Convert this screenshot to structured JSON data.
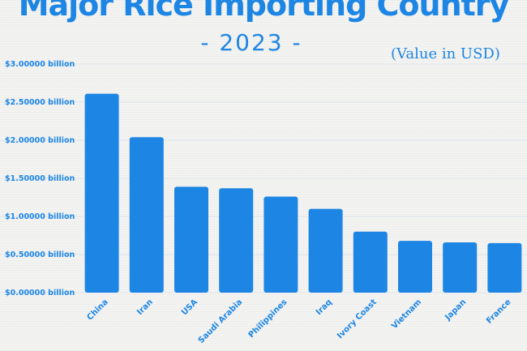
{
  "chart_data": {
    "type": "bar",
    "title": "Major Rice Importing Country",
    "subtitle": "- 2023 -",
    "unit_note": "(Value in USD)",
    "categories": [
      "China",
      "Iran",
      "USA",
      "Saudi Arabia",
      "Philippines",
      "Iraq",
      "Ivory Coast",
      "Vietnam",
      "Japan",
      "France"
    ],
    "values": [
      2.61,
      2.04,
      1.39,
      1.37,
      1.26,
      1.1,
      0.8,
      0.68,
      0.66,
      0.65
    ],
    "value_unit": "billion USD",
    "ylim": [
      0,
      3.0
    ],
    "yticks": [
      {
        "value": 0.0,
        "label": "$0.00000 billion"
      },
      {
        "value": 0.5,
        "label": "$0.50000 billion"
      },
      {
        "value": 1.0,
        "label": "$1.00000 billion"
      },
      {
        "value": 1.5,
        "label": "$1.50000 billion"
      },
      {
        "value": 2.0,
        "label": "$2.00000 billion"
      },
      {
        "value": 2.5,
        "label": "$2.50000 billion"
      },
      {
        "value": 3.0,
        "label": "$3.00000 billion"
      }
    ],
    "xlabel": "",
    "ylabel": "",
    "grid": true,
    "legend": "none",
    "colors": {
      "bar": "#1d86e4",
      "text": "#1d86e4",
      "tick_text": "#1d86e4",
      "grid": "#dfe6ef"
    }
  }
}
